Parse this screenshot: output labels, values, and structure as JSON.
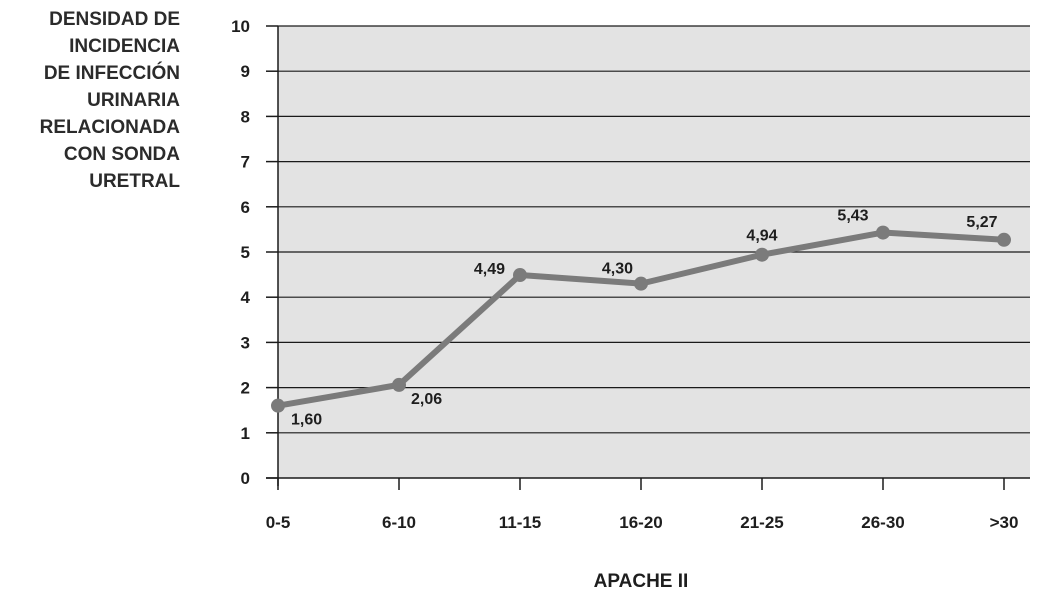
{
  "chart_data": {
    "type": "line",
    "title": "",
    "ylabel": "DENSIDAD DE\nINCIDENCIA\nDE INFECCIÓN\nURINARIA\nRELACIONADA\nCON SONDA\nURETRAL",
    "xlabel": "APACHE II",
    "categories": [
      "0-5",
      "6-10",
      "11-15",
      "16-20",
      "21-25",
      "26-30",
      ">30"
    ],
    "series": [
      {
        "values": [
          1.6,
          2.06,
          4.49,
          4.3,
          4.94,
          5.43,
          5.27
        ],
        "labels": [
          "1,60",
          "2,06",
          "4,49",
          "4,30",
          "4,94",
          "5,43",
          "5,27"
        ]
      }
    ],
    "ylim": [
      0,
      10
    ],
    "yticks": [
      0,
      1,
      2,
      3,
      4,
      5,
      6,
      7,
      8,
      9,
      10
    ],
    "grid": true,
    "colors": {
      "plot_background": "#e3e3e3",
      "line": "#7b7b7b",
      "marker": "#7b7b7b",
      "grid": "#1a1a1a",
      "text": "#1e1e1e"
    }
  }
}
